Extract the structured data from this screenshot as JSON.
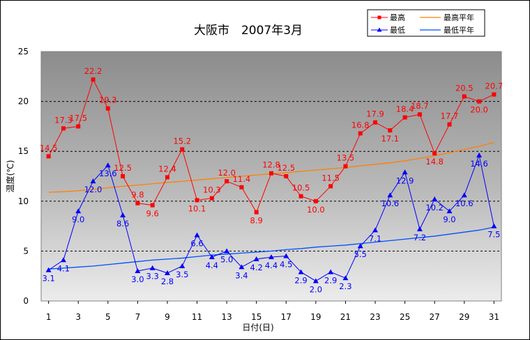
{
  "chart_data": {
    "type": "line",
    "title": "大阪市　2007年3月",
    "xlabel": "日付(日)",
    "ylabel": "温度(℃)",
    "ylim": [
      0,
      25
    ],
    "yticks": [
      "0",
      "5",
      "10",
      "15",
      "20",
      "25"
    ],
    "xticks": [
      "1",
      "3",
      "5",
      "7",
      "9",
      "11",
      "13",
      "15",
      "17",
      "19",
      "21",
      "23",
      "25",
      "27",
      "29",
      "31"
    ],
    "grid": "horizontal dashed",
    "legend_position": "top-right",
    "x": [
      1,
      2,
      3,
      4,
      5,
      6,
      7,
      8,
      9,
      10,
      11,
      12,
      13,
      14,
      15,
      16,
      17,
      18,
      19,
      20,
      21,
      22,
      23,
      24,
      25,
      26,
      27,
      28,
      29,
      30,
      31
    ],
    "series": [
      {
        "name": "最高",
        "color": "#ff0000",
        "marker": "square",
        "values": [
          14.5,
          17.3,
          17.5,
          22.2,
          19.3,
          12.5,
          9.8,
          9.6,
          12.4,
          15.2,
          10.1,
          10.3,
          12.0,
          11.4,
          8.9,
          12.8,
          12.5,
          10.5,
          10.0,
          11.5,
          13.5,
          16.8,
          17.9,
          17.1,
          18.4,
          18.7,
          14.8,
          17.7,
          20.5,
          20.0,
          20.7
        ],
        "labels": [
          "14.5",
          "17.3",
          "17.5",
          "22.2",
          "19.3",
          "12.5",
          "9.8",
          "9.6",
          "12.4",
          "15.2",
          "10.1",
          "10.3",
          "12.0",
          "11.4",
          "8.9",
          "12.8",
          "12.5",
          "10.5",
          "10.0",
          "11.5",
          "13.5",
          "16.8",
          "17.9",
          "17.1",
          "18.4",
          "18.7",
          "14.8",
          "17.7",
          "20.5",
          "20.0",
          "20.7"
        ]
      },
      {
        "name": "最低",
        "color": "#0000ff",
        "marker": "triangle",
        "values": [
          3.1,
          4.1,
          9.0,
          12.0,
          13.6,
          8.6,
          3.0,
          3.3,
          2.8,
          3.5,
          6.6,
          4.4,
          5.0,
          3.4,
          4.2,
          4.4,
          4.5,
          2.9,
          2.0,
          2.9,
          2.3,
          5.5,
          7.1,
          10.6,
          12.9,
          7.2,
          10.2,
          9.0,
          10.6,
          14.6,
          7.5
        ],
        "labels": [
          "3.1",
          "4.1",
          "9.0",
          "12.0",
          "13.6",
          "8.6",
          "3.0",
          "3.3",
          "2.8",
          "3.5",
          "6.6",
          "4.4",
          "5.0",
          "3.4",
          "4.2",
          "4.4",
          "4.5",
          "2.9",
          "2.0",
          "2.9",
          "2.3",
          "5.5",
          "7.1",
          "10.6",
          "12.9",
          "7.2",
          "10.2",
          "9.0",
          "10.6",
          "14.6",
          "7.5"
        ]
      },
      {
        "name": "最高平年",
        "color": "#ff8000",
        "marker": "none",
        "values": [
          10.9,
          10.95,
          11.05,
          11.2,
          11.35,
          11.5,
          11.62,
          11.75,
          11.88,
          12.0,
          12.12,
          12.25,
          12.38,
          12.5,
          12.62,
          12.75,
          12.85,
          13.0,
          13.12,
          13.25,
          13.38,
          13.55,
          13.7,
          13.85,
          14.05,
          14.3,
          14.55,
          14.85,
          15.2,
          15.5,
          15.9
        ]
      },
      {
        "name": "最低平年",
        "color": "#0050ff",
        "marker": "none",
        "values": [
          3.2,
          3.3,
          3.4,
          3.5,
          3.65,
          3.8,
          3.95,
          4.1,
          4.2,
          4.3,
          4.45,
          4.6,
          4.7,
          4.8,
          4.9,
          5.0,
          5.15,
          5.25,
          5.4,
          5.5,
          5.6,
          5.75,
          5.9,
          6.05,
          6.2,
          6.35,
          6.5,
          6.7,
          6.9,
          7.1,
          7.4
        ]
      }
    ]
  }
}
